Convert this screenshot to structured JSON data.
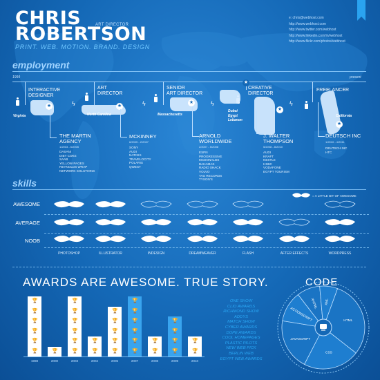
{
  "header": {
    "first_name": "CHRIS",
    "last_name": "ROBERTSON",
    "role": "ART DIRECTOR",
    "tagline": "PRINT. WEB. MOTION. BRAND. DESIGN",
    "contact": [
      "e: chris@webhost.com",
      "http://www.webhost.com",
      "http://www.twitter.com/webhost",
      "http://www.linkedin.com/in/webhost",
      "http://www.flickr.com/photos/webhost"
    ]
  },
  "employment": {
    "title": "employment",
    "start_year": "1999",
    "end_label": "present",
    "jobs": [
      {
        "title": [
          "INTERACTIVE",
          "DESIGNER"
        ],
        "place": "Virginia",
        "company": [
          "THE MARTIN",
          "AGENCY"
        ],
        "dates": "1/2003 - 6/2005",
        "clients": [
          "DASANI",
          "DIET COKE",
          "SAAB",
          "YELLOW PAGES",
          "REYNOLDS WRAP",
          "NETWORK SOLUTIONS"
        ]
      },
      {
        "title": [
          "ART",
          "DIRECTOR"
        ],
        "place": "North Carolina",
        "company": [
          "MCKINNEY"
        ],
        "dates": "6/2005 - 2/2007",
        "clients": [
          "SONY",
          "AUDI",
          "NATIXIS",
          "TRAVELOCITY",
          "POLARIS",
          "QWEST"
        ]
      },
      {
        "title": [
          "SENIOR",
          "ART DIRECTOR"
        ],
        "place": "Massachusetts",
        "company": [
          "ARNOLD",
          "WORLDWIDE"
        ],
        "dates": "2/2007 - 5/2008",
        "clients": [
          "ESPN",
          "PROGRESSIVE",
          "MCDONALDS",
          "BAHAMAS",
          "RADIO SHACK",
          "VOLVO",
          "TAG RECORDS",
          "TYSON'S"
        ]
      },
      {
        "title": [
          "CREATIVE",
          "DIRECTOR"
        ],
        "place": [
          "Dubai",
          "Egypt",
          "Lebanon"
        ],
        "company": [
          "J. WALTER",
          "THOMPSON"
        ],
        "dates": "5/2008 - 8/2010",
        "clients": [
          "AUDI",
          "KRAFT",
          "NESTLE",
          "HSBC",
          "VODAFONE",
          "EGYPT TOURISM"
        ]
      },
      {
        "title": [
          "FREELANCER"
        ],
        "place": "California",
        "company": [
          "DEUTSCH INC"
        ],
        "dates": "1/2010 - 4/2011",
        "clients": [
          "DEUTSCH INC",
          "HTC"
        ]
      }
    ]
  },
  "skills": {
    "title": "skills",
    "legend": "= A LITTLE BIT OF AWESOME",
    "levels": [
      "AWESOME",
      "AVERAGE",
      "NOOB"
    ],
    "max": 3,
    "tools": [
      {
        "name": "PHOTOSHOP",
        "value": 3
      },
      {
        "name": "ILLUSTRATOR",
        "value": 3
      },
      {
        "name": "INDESIGN",
        "value": 2
      },
      {
        "name": "DREAMWEAVER",
        "value": 2
      },
      {
        "name": "FLASH",
        "value": 2
      },
      {
        "name": "AFTER EFFECTS",
        "value": 1
      },
      {
        "name": "WORDPRESS",
        "value": 2
      }
    ]
  },
  "awards": {
    "title": "AWARDS ARE AWESOME. TRUE STORY.",
    "list": [
      "ONE SHOW",
      "CLIO AWARDS",
      "RICHMOND SHOW",
      "ADDYS",
      "MATCH SHOW",
      "CYBER AWARDS",
      "DOPE AWARDS",
      "COOL HOMEPAGES",
      "PLASTIC PILOTS",
      "NEW WEB PICK",
      "BERLIN WEB",
      "EGYPT WEB AWARDS"
    ],
    "chart_data": {
      "type": "bar",
      "categories": [
        "1998",
        "2000",
        "2003",
        "2004",
        "2005",
        "2007",
        "2008",
        "2009",
        "2010"
      ],
      "values": [
        6,
        1,
        6,
        2,
        5,
        6,
        2,
        4,
        2
      ],
      "ylim": [
        0,
        6
      ]
    }
  },
  "code": {
    "title": "CODE",
    "chart_data": {
      "type": "pie",
      "labels": [
        "HTML",
        "CSS",
        "JAVASCRIPT",
        "ACTIONSCRIPT",
        "XHTML",
        "XML"
      ],
      "values": [
        30,
        22,
        20,
        12,
        9,
        7
      ]
    }
  },
  "colors": {
    "background": "#1468b6",
    "accent": "#2aa3f0",
    "light": "#39a4ee",
    "text": "#ffffff"
  }
}
